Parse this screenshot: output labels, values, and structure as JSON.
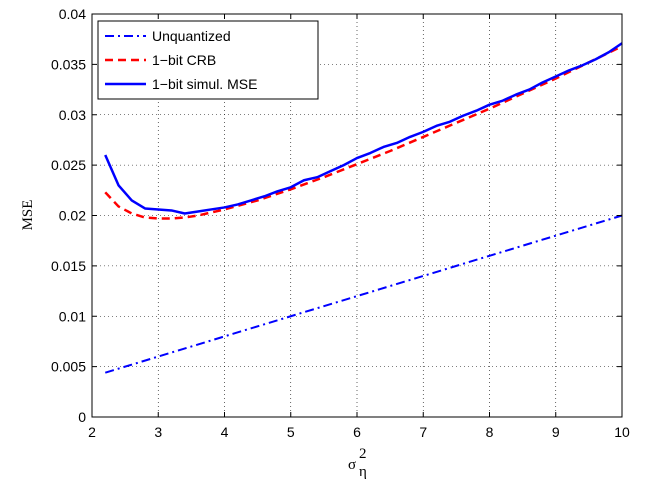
{
  "chart_data": {
    "type": "line",
    "title": "",
    "xlabel": "σ",
    "xlabel_sup": "2",
    "xlabel_sub": "η",
    "ylabel": "MSE",
    "xlim": [
      2,
      10
    ],
    "ylim": [
      0,
      0.04
    ],
    "xticks": [
      2,
      3,
      4,
      5,
      6,
      7,
      8,
      9,
      10
    ],
    "xtick_labels": [
      "2",
      "3",
      "4",
      "5",
      "6",
      "7",
      "8",
      "9",
      "10"
    ],
    "yticks": [
      0,
      0.005,
      0.01,
      0.015,
      0.02,
      0.025,
      0.03,
      0.035,
      0.04
    ],
    "ytick_labels": [
      "0",
      "0.005",
      "0.01",
      "0.015",
      "0.02",
      "0.025",
      "0.03",
      "0.035",
      "0.04"
    ],
    "grid": true,
    "legend_position": "top-left",
    "series": [
      {
        "name": "Unquantized",
        "style": "dashdot",
        "color": "#0000ff",
        "x": [
          2.2,
          3,
          4,
          5,
          6,
          7,
          8,
          9,
          10
        ],
        "y": [
          0.0044,
          0.006,
          0.008,
          0.01,
          0.012,
          0.014,
          0.016,
          0.018,
          0.02
        ]
      },
      {
        "name": "1−bit CRB",
        "style": "dashed",
        "color": "#ff0000",
        "x": [
          2.2,
          2.4,
          2.6,
          2.8,
          3.0,
          3.2,
          3.4,
          3.6,
          3.8,
          4.0,
          4.5,
          5.0,
          5.5,
          6.0,
          6.5,
          7.0,
          7.5,
          8.0,
          8.5,
          9.0,
          9.5,
          10.0
        ],
        "y": [
          0.0223,
          0.0209,
          0.0202,
          0.0198,
          0.0197,
          0.0197,
          0.0198,
          0.02,
          0.0203,
          0.0206,
          0.0215,
          0.0226,
          0.0238,
          0.0251,
          0.0264,
          0.0278,
          0.0292,
          0.0306,
          0.0321,
          0.0336,
          0.0352,
          0.0368
        ]
      },
      {
        "name": "1−bit simul. MSE",
        "style": "solid",
        "color": "#0000ff",
        "x": [
          2.2,
          2.4,
          2.6,
          2.8,
          3.0,
          3.2,
          3.4,
          3.6,
          3.8,
          4.0,
          4.2,
          4.4,
          4.6,
          4.8,
          5.0,
          5.2,
          5.4,
          5.6,
          5.8,
          6.0,
          6.2,
          6.4,
          6.6,
          6.8,
          7.0,
          7.2,
          7.4,
          7.6,
          7.8,
          8.0,
          8.2,
          8.4,
          8.6,
          8.8,
          9.0,
          9.2,
          9.4,
          9.6,
          9.8,
          10.0
        ],
        "y": [
          0.026,
          0.023,
          0.0215,
          0.0207,
          0.0206,
          0.0205,
          0.0202,
          0.0204,
          0.0206,
          0.0208,
          0.0211,
          0.0215,
          0.0219,
          0.0224,
          0.0228,
          0.0235,
          0.0238,
          0.0244,
          0.025,
          0.0257,
          0.0262,
          0.0268,
          0.0272,
          0.0278,
          0.0283,
          0.0289,
          0.0293,
          0.0299,
          0.0304,
          0.031,
          0.0314,
          0.032,
          0.0325,
          0.0332,
          0.0338,
          0.0344,
          0.0349,
          0.0355,
          0.0362,
          0.0371
        ]
      }
    ]
  }
}
